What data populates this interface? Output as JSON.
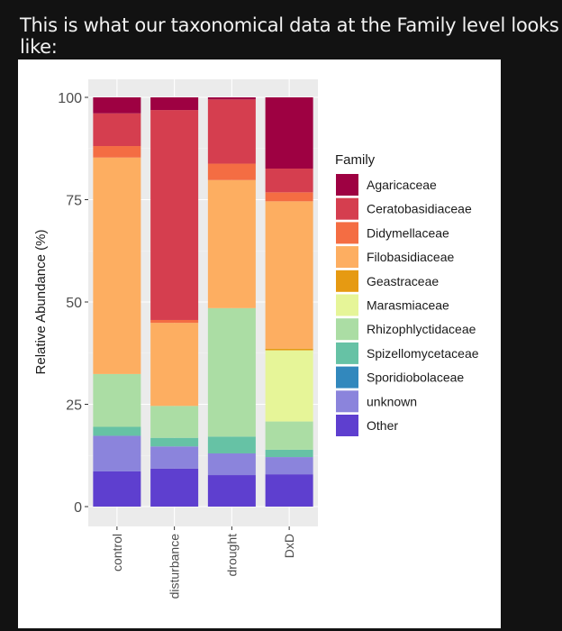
{
  "heading": "This is what our taxonomical data at the Family level looks like:",
  "chart_data": {
    "type": "bar",
    "stacked": true,
    "title": "",
    "xlabel": "",
    "ylabel": "Relative Abundance (%)",
    "ylim": [
      0,
      100
    ],
    "yticks": [
      0,
      25,
      50,
      75,
      100
    ],
    "grid": true,
    "legend": {
      "title": "Family",
      "placement": "right"
    },
    "categories": [
      "control",
      "disturbance",
      "drought",
      "DxD"
    ],
    "series": [
      {
        "name": "Other",
        "color": "#5E3FCF",
        "values": [
          8.6,
          9.3,
          7.7,
          7.9
        ]
      },
      {
        "name": "unknown",
        "color": "#8B84DC",
        "values": [
          8.7,
          5.4,
          5.3,
          4.2
        ]
      },
      {
        "name": "Sporidiobolaceae",
        "color": "#3288BD",
        "values": [
          0,
          0,
          0,
          0
        ]
      },
      {
        "name": "Spizellomycetaceae",
        "color": "#66C2A5",
        "values": [
          2.2,
          2.1,
          4.1,
          1.8
        ]
      },
      {
        "name": "Rhizophlyctidaceae",
        "color": "#ABDDA4",
        "values": [
          12.9,
          7.8,
          31.4,
          6.9
        ]
      },
      {
        "name": "Marasmiaceae",
        "color": "#E6F598",
        "values": [
          0,
          0,
          0,
          17.4
        ]
      },
      {
        "name": "Geastraceae",
        "color": "#E69A12",
        "values": [
          0,
          0,
          0,
          0.4
        ]
      },
      {
        "name": "Filobasidiaceae",
        "color": "#FDAE61",
        "values": [
          52.9,
          20.3,
          31.3,
          36.0
        ]
      },
      {
        "name": "Didymellaceae",
        "color": "#F46D43",
        "values": [
          2.8,
          0.7,
          4.0,
          2.2
        ]
      },
      {
        "name": "Ceratobasidiaceae",
        "color": "#D53E4F",
        "values": [
          8.0,
          51.3,
          15.7,
          5.8
        ]
      },
      {
        "name": "Agaricaceae",
        "color": "#9E0142",
        "values": [
          3.9,
          3.1,
          0.5,
          17.4
        ]
      }
    ],
    "legend_order": [
      "Agaricaceae",
      "Ceratobasidiaceae",
      "Didymellaceae",
      "Filobasidiaceae",
      "Geastraceae",
      "Marasmiaceae",
      "Rhizophlyctidaceae",
      "Spizellomycetaceae",
      "Sporidiobolaceae",
      "unknown",
      "Other"
    ]
  }
}
